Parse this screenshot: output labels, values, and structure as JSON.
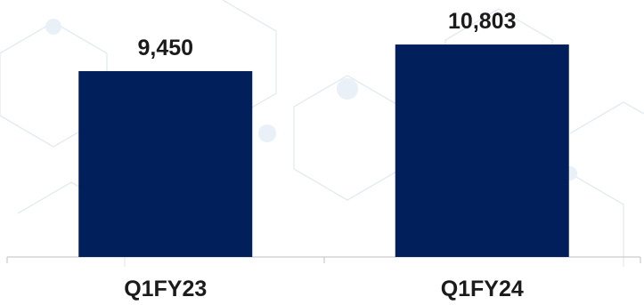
{
  "chart_data": {
    "type": "bar",
    "categories": [
      "Q1FY23",
      "Q1FY24"
    ],
    "values": [
      9450,
      10803
    ],
    "value_labels": [
      "9,450",
      "10,803"
    ],
    "title": "",
    "xlabel": "",
    "ylabel": "",
    "ylim": [
      0,
      11800
    ],
    "grid": false,
    "legend": "none",
    "bar_color": "#001f5b"
  }
}
